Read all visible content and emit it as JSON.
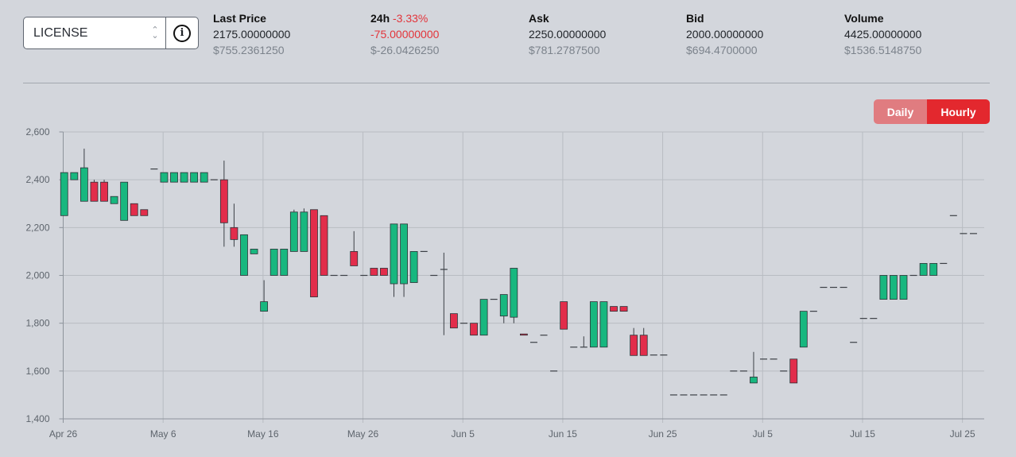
{
  "selector": {
    "value": "LICENSE"
  },
  "stats": [
    {
      "label": "Last Price",
      "change": "",
      "value": "2175.00000000",
      "usd": "$755.2361250",
      "negative": false
    },
    {
      "label": "24h",
      "change": "-3.33%",
      "value": "-75.00000000",
      "usd": "$-26.0426250",
      "negative": true
    },
    {
      "label": "Ask",
      "change": "",
      "value": "2250.00000000",
      "usd": "$781.2787500",
      "negative": false
    },
    {
      "label": "Bid",
      "change": "",
      "value": "2000.00000000",
      "usd": "$694.4700000",
      "negative": false
    },
    {
      "label": "Volume",
      "change": "",
      "value": "4425.00000000",
      "usd": "$1536.5148750",
      "negative": false
    }
  ],
  "toggle": {
    "daily": "Daily",
    "hourly": "Hourly",
    "active": "hourly"
  },
  "colors": {
    "up": "#18b77f",
    "down": "#e22d4b",
    "grid": "#b8bcc2",
    "axis": "#8d939b"
  },
  "chart_data": {
    "type": "candlestick",
    "x_tick_labels": [
      "Apr 26",
      "May 6",
      "May 16",
      "May 26",
      "Jun 5",
      "Jun 15",
      "Jun 25",
      "Jul 5",
      "Jul 15",
      "Jul 25"
    ],
    "y_tick_labels": [
      "1,400",
      "1,600",
      "1,800",
      "2,000",
      "2,200",
      "2,400",
      "2,600"
    ],
    "ylim": [
      1400,
      2600
    ],
    "xlim": [
      0,
      91.5
    ],
    "grid": true,
    "candles": [
      {
        "x": 0.1,
        "o": 2250,
        "h": 2430,
        "l": 2250,
        "c": 2430
      },
      {
        "x": 1.1,
        "o": 2400,
        "h": 2430,
        "l": 2400,
        "c": 2430
      },
      {
        "x": 2.1,
        "o": 2310,
        "h": 2530,
        "l": 2310,
        "c": 2450
      },
      {
        "x": 3.1,
        "o": 2390,
        "h": 2400,
        "l": 2310,
        "c": 2310
      },
      {
        "x": 4.1,
        "o": 2390,
        "h": 2400,
        "l": 2310,
        "c": 2310
      },
      {
        "x": 5.1,
        "o": 2300,
        "h": 2330,
        "l": 2300,
        "c": 2330
      },
      {
        "x": 6.1,
        "o": 2230,
        "h": 2390,
        "l": 2230,
        "c": 2390
      },
      {
        "x": 7.1,
        "o": 2300,
        "h": 2300,
        "l": 2250,
        "c": 2250
      },
      {
        "x": 8.1,
        "o": 2275,
        "h": 2275,
        "l": 2250,
        "c": 2250
      },
      {
        "x": 9.1,
        "o": 2445,
        "h": 2445,
        "l": 2445,
        "c": 2445
      },
      {
        "x": 10.1,
        "o": 2390,
        "h": 2430,
        "l": 2390,
        "c": 2430
      },
      {
        "x": 11.1,
        "o": 2390,
        "h": 2430,
        "l": 2390,
        "c": 2430
      },
      {
        "x": 12.1,
        "o": 2390,
        "h": 2430,
        "l": 2390,
        "c": 2430
      },
      {
        "x": 13.1,
        "o": 2390,
        "h": 2430,
        "l": 2390,
        "c": 2430
      },
      {
        "x": 14.1,
        "o": 2390,
        "h": 2430,
        "l": 2390,
        "c": 2430
      },
      {
        "x": 15.1,
        "o": 2400,
        "h": 2400,
        "l": 2400,
        "c": 2400
      },
      {
        "x": 16.1,
        "o": 2400,
        "h": 2480,
        "l": 2120,
        "c": 2220
      },
      {
        "x": 17.1,
        "o": 2200,
        "h": 2300,
        "l": 2120,
        "c": 2150
      },
      {
        "x": 18.1,
        "o": 2000,
        "h": 2170,
        "l": 2000,
        "c": 2170
      },
      {
        "x": 19.1,
        "o": 2090,
        "h": 2110,
        "l": 2090,
        "c": 2110
      },
      {
        "x": 20.1,
        "o": 1850,
        "h": 1980,
        "l": 1850,
        "c": 1890
      },
      {
        "x": 21.1,
        "o": 2000,
        "h": 2110,
        "l": 2000,
        "c": 2110
      },
      {
        "x": 22.1,
        "o": 2000,
        "h": 2110,
        "l": 2000,
        "c": 2110
      },
      {
        "x": 23.1,
        "o": 2100,
        "h": 2275,
        "l": 2100,
        "c": 2265
      },
      {
        "x": 24.1,
        "o": 2100,
        "h": 2280,
        "l": 2100,
        "c": 2265
      },
      {
        "x": 25.1,
        "o": 2275,
        "h": 2275,
        "l": 1910,
        "c": 1910
      },
      {
        "x": 26.1,
        "o": 2250,
        "h": 2250,
        "l": 2000,
        "c": 2000
      },
      {
        "x": 27.1,
        "o": 2000,
        "h": 2000,
        "l": 2000,
        "c": 2000
      },
      {
        "x": 28.1,
        "o": 2000,
        "h": 2000,
        "l": 2000,
        "c": 2000
      },
      {
        "x": 29.1,
        "o": 2100,
        "h": 2185,
        "l": 2040,
        "c": 2040
      },
      {
        "x": 30.1,
        "o": 2000,
        "h": 2000,
        "l": 2000,
        "c": 2000
      },
      {
        "x": 31.1,
        "o": 2030,
        "h": 2030,
        "l": 2000,
        "c": 2000
      },
      {
        "x": 32.1,
        "o": 2030,
        "h": 2030,
        "l": 2000,
        "c": 2000
      },
      {
        "x": 33.1,
        "o": 1965,
        "h": 2215,
        "l": 1910,
        "c": 2215
      },
      {
        "x": 34.1,
        "o": 1965,
        "h": 2215,
        "l": 1910,
        "c": 2215
      },
      {
        "x": 35.1,
        "o": 1970,
        "h": 2100,
        "l": 1970,
        "c": 2100
      },
      {
        "x": 36.1,
        "o": 2100,
        "h": 2100,
        "l": 2100,
        "c": 2100
      },
      {
        "x": 37.1,
        "o": 2000,
        "h": 2000,
        "l": 2000,
        "c": 2000
      },
      {
        "x": 38.1,
        "o": 2025,
        "h": 2095,
        "l": 1750,
        "c": 2025
      },
      {
        "x": 39.1,
        "o": 1840,
        "h": 1840,
        "l": 1780,
        "c": 1780
      },
      {
        "x": 40.1,
        "o": 1800,
        "h": 1800,
        "l": 1800,
        "c": 1800
      },
      {
        "x": 41.1,
        "o": 1800,
        "h": 1800,
        "l": 1750,
        "c": 1750
      },
      {
        "x": 42.1,
        "o": 1750,
        "h": 1900,
        "l": 1750,
        "c": 1900
      },
      {
        "x": 43.1,
        "o": 1900,
        "h": 1900,
        "l": 1900,
        "c": 1900
      },
      {
        "x": 44.1,
        "o": 1830,
        "h": 1920,
        "l": 1800,
        "c": 1920
      },
      {
        "x": 45.1,
        "o": 1825,
        "h": 2030,
        "l": 1800,
        "c": 2030
      },
      {
        "x": 46.1,
        "o": 1755,
        "h": 1755,
        "l": 1750,
        "c": 1750
      },
      {
        "x": 47.1,
        "o": 1720,
        "h": 1720,
        "l": 1720,
        "c": 1720
      },
      {
        "x": 48.1,
        "o": 1750,
        "h": 1750,
        "l": 1750,
        "c": 1750
      },
      {
        "x": 49.1,
        "o": 1600,
        "h": 1600,
        "l": 1600,
        "c": 1600
      },
      {
        "x": 50.1,
        "o": 1890,
        "h": 1890,
        "l": 1775,
        "c": 1775
      },
      {
        "x": 51.1,
        "o": 1700,
        "h": 1700,
        "l": 1700,
        "c": 1700
      },
      {
        "x": 52.1,
        "o": 1700,
        "h": 1745,
        "l": 1700,
        "c": 1700
      },
      {
        "x": 53.1,
        "o": 1700,
        "h": 1890,
        "l": 1700,
        "c": 1890
      },
      {
        "x": 54.1,
        "o": 1700,
        "h": 1890,
        "l": 1700,
        "c": 1890
      },
      {
        "x": 55.1,
        "o": 1870,
        "h": 1870,
        "l": 1850,
        "c": 1850
      },
      {
        "x": 56.1,
        "o": 1870,
        "h": 1870,
        "l": 1850,
        "c": 1850
      },
      {
        "x": 57.1,
        "o": 1750,
        "h": 1780,
        "l": 1665,
        "c": 1665
      },
      {
        "x": 58.1,
        "o": 1750,
        "h": 1780,
        "l": 1665,
        "c": 1665
      },
      {
        "x": 59.1,
        "o": 1667,
        "h": 1667,
        "l": 1667,
        "c": 1667
      },
      {
        "x": 60.1,
        "o": 1667,
        "h": 1667,
        "l": 1667,
        "c": 1667
      },
      {
        "x": 61.1,
        "o": 1500,
        "h": 1500,
        "l": 1500,
        "c": 1500
      },
      {
        "x": 62.1,
        "o": 1500,
        "h": 1500,
        "l": 1500,
        "c": 1500
      },
      {
        "x": 63.1,
        "o": 1500,
        "h": 1500,
        "l": 1500,
        "c": 1500
      },
      {
        "x": 64.1,
        "o": 1500,
        "h": 1500,
        "l": 1500,
        "c": 1500
      },
      {
        "x": 65.1,
        "o": 1500,
        "h": 1500,
        "l": 1500,
        "c": 1500
      },
      {
        "x": 66.1,
        "o": 1500,
        "h": 1500,
        "l": 1500,
        "c": 1500
      },
      {
        "x": 67.1,
        "o": 1600,
        "h": 1600,
        "l": 1600,
        "c": 1600
      },
      {
        "x": 68.1,
        "o": 1600,
        "h": 1600,
        "l": 1600,
        "c": 1600
      },
      {
        "x": 69.1,
        "o": 1550,
        "h": 1680,
        "l": 1550,
        "c": 1575
      },
      {
        "x": 70.1,
        "o": 1650,
        "h": 1650,
        "l": 1650,
        "c": 1650
      },
      {
        "x": 71.1,
        "o": 1650,
        "h": 1650,
        "l": 1650,
        "c": 1650
      },
      {
        "x": 72.1,
        "o": 1600,
        "h": 1600,
        "l": 1600,
        "c": 1600
      },
      {
        "x": 73.1,
        "o": 1650,
        "h": 1650,
        "l": 1550,
        "c": 1550
      },
      {
        "x": 74.1,
        "o": 1700,
        "h": 1850,
        "l": 1700,
        "c": 1850
      },
      {
        "x": 75.1,
        "o": 1850,
        "h": 1850,
        "l": 1850,
        "c": 1850
      },
      {
        "x": 76.1,
        "o": 1950,
        "h": 1950,
        "l": 1950,
        "c": 1950
      },
      {
        "x": 77.1,
        "o": 1950,
        "h": 1950,
        "l": 1950,
        "c": 1950
      },
      {
        "x": 78.1,
        "o": 1950,
        "h": 1950,
        "l": 1950,
        "c": 1950
      },
      {
        "x": 79.1,
        "o": 1720,
        "h": 1720,
        "l": 1720,
        "c": 1720
      },
      {
        "x": 80.1,
        "o": 1820,
        "h": 1820,
        "l": 1820,
        "c": 1820
      },
      {
        "x": 81.1,
        "o": 1820,
        "h": 1820,
        "l": 1820,
        "c": 1820
      },
      {
        "x": 82.1,
        "o": 1900,
        "h": 2000,
        "l": 1900,
        "c": 2000
      },
      {
        "x": 83.1,
        "o": 1900,
        "h": 2000,
        "l": 1900,
        "c": 2000
      },
      {
        "x": 84.1,
        "o": 1900,
        "h": 2000,
        "l": 1900,
        "c": 2000
      },
      {
        "x": 85.1,
        "o": 2000,
        "h": 2000,
        "l": 2000,
        "c": 2000
      },
      {
        "x": 86.1,
        "o": 2000,
        "h": 2050,
        "l": 2000,
        "c": 2050
      },
      {
        "x": 87.1,
        "o": 2000,
        "h": 2050,
        "l": 2000,
        "c": 2050
      },
      {
        "x": 88.1,
        "o": 2050,
        "h": 2050,
        "l": 2050,
        "c": 2050
      },
      {
        "x": 89.1,
        "o": 2250,
        "h": 2250,
        "l": 2250,
        "c": 2250
      },
      {
        "x": 90.1,
        "o": 2175,
        "h": 2175,
        "l": 2175,
        "c": 2175
      },
      {
        "x": 91.1,
        "o": 2175,
        "h": 2175,
        "l": 2175,
        "c": 2175
      }
    ]
  }
}
